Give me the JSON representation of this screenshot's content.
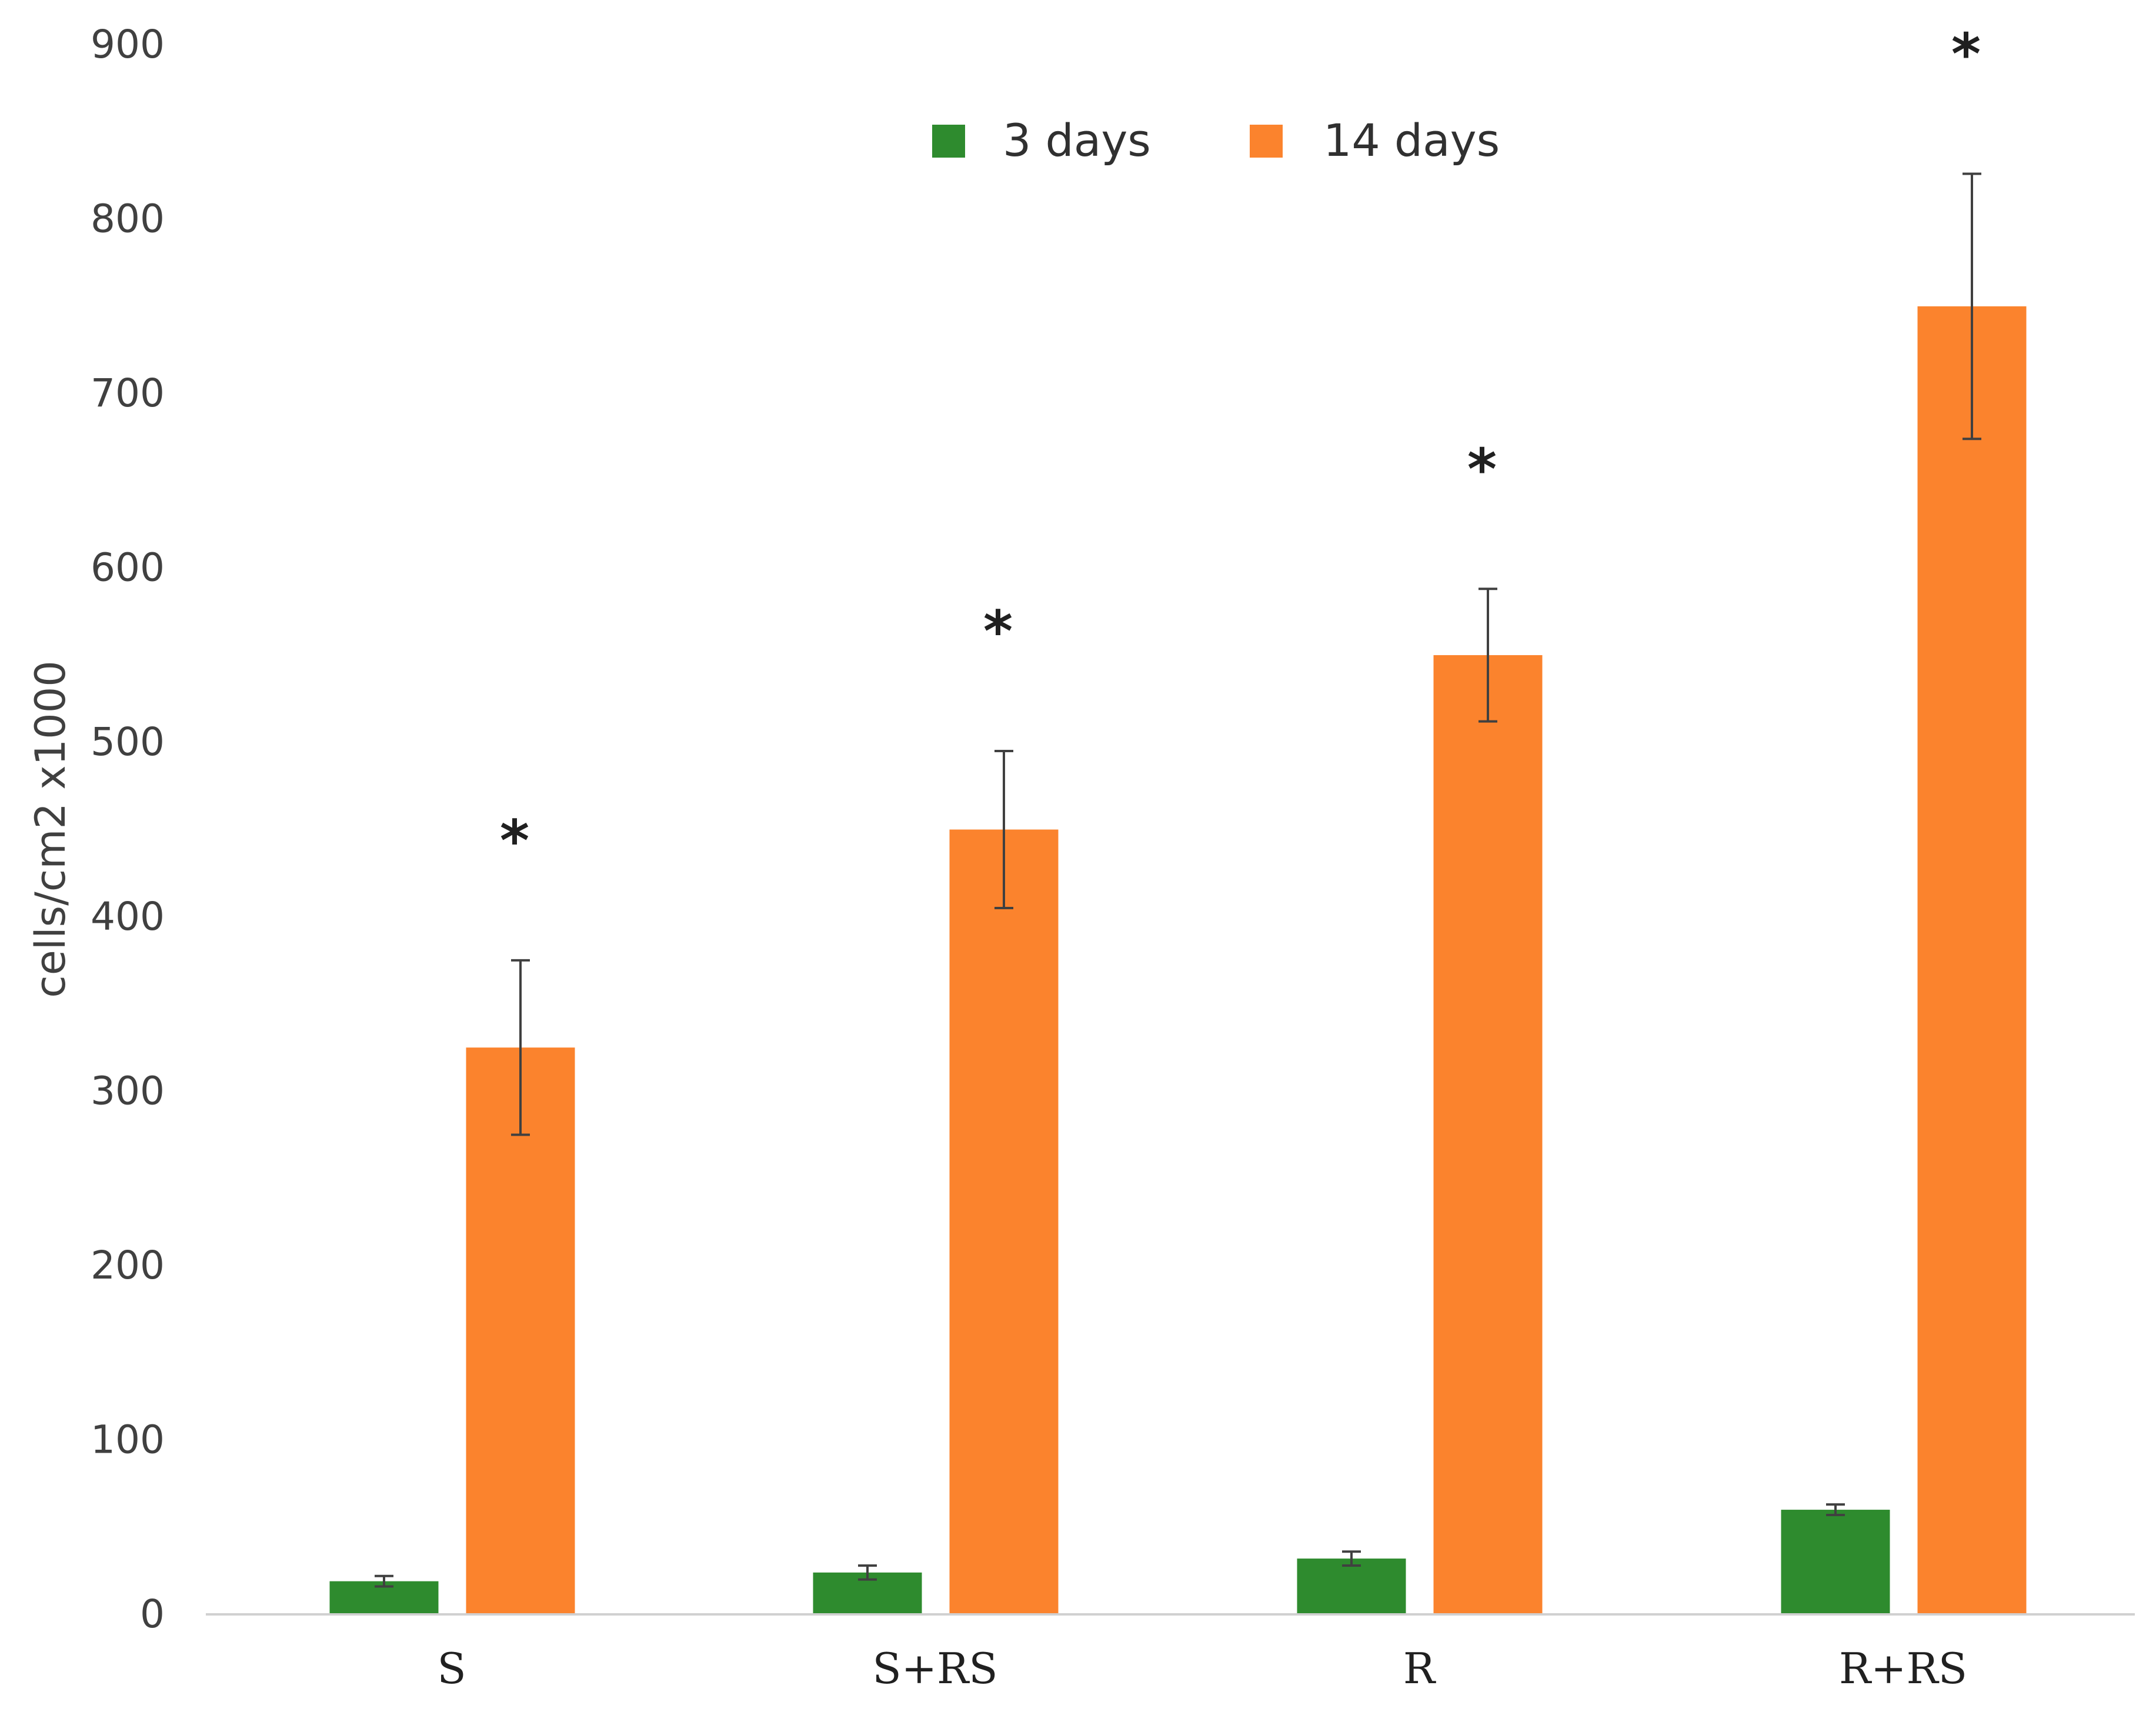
{
  "chart_data": {
    "type": "bar",
    "title": "",
    "xlabel": "",
    "ylabel": "cells/cm2   x1000",
    "ylim": [
      0,
      900
    ],
    "yticks": [
      0,
      100,
      200,
      300,
      400,
      500,
      600,
      700,
      800,
      900
    ],
    "categories": [
      "S",
      "S+RS",
      "R",
      "R+RS"
    ],
    "series": [
      {
        "name": "3 days",
        "color": "#2e8b2e",
        "values": [
          19,
          24,
          32,
          60
        ],
        "errors": [
          3,
          4,
          4,
          3
        ]
      },
      {
        "name": "14 days",
        "color": "#fb832d",
        "values": [
          325,
          450,
          550,
          750
        ],
        "errors": [
          50,
          45,
          38,
          76
        ]
      }
    ],
    "annotations": [
      "*",
      "*",
      "*",
      "*"
    ],
    "legend_position": "top-center",
    "grid": false
  }
}
